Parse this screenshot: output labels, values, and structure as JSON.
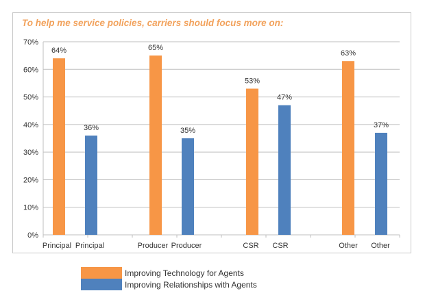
{
  "chart_data": {
    "type": "bar",
    "title": "To help me service policies, carriers should focus more on:",
    "xlabel": "",
    "ylabel": "",
    "ylim": [
      0,
      70
    ],
    "yticks": [
      0,
      10,
      20,
      30,
      40,
      50,
      60,
      70
    ],
    "ytick_labels": [
      "0%",
      "10%",
      "20%",
      "30%",
      "40%",
      "50%",
      "60%",
      "70%"
    ],
    "grid": true,
    "legend_position": "bottom-left",
    "categories": [
      "Principal",
      "Principal",
      "",
      "Producer",
      "Producer",
      "",
      "CSR",
      "CSR",
      "",
      "Other",
      "Other"
    ],
    "bars": [
      {
        "category": "Principal",
        "series": "Improving Technology for Agents",
        "value": 64,
        "label": "64%"
      },
      {
        "category": "Principal",
        "series": "Improving Relationships with Agents",
        "value": 36,
        "label": "36%"
      },
      {
        "category": "Producer",
        "series": "Improving Technology for Agents",
        "value": 65,
        "label": "65%"
      },
      {
        "category": "Producer",
        "series": "Improving Relationships with Agents",
        "value": 35,
        "label": "35%"
      },
      {
        "category": "CSR",
        "series": "Improving Technology for Agents",
        "value": 53,
        "label": "53%"
      },
      {
        "category": "CSR",
        "series": "Improving Relationships with Agents",
        "value": 47,
        "label": "47%"
      },
      {
        "category": "Other",
        "series": "Improving Technology for Agents",
        "value": 63,
        "label": "63%"
      },
      {
        "category": "Other",
        "series": "Improving Relationships with Agents",
        "value": 37,
        "label": "37%"
      }
    ],
    "series": [
      {
        "name": "Improving Technology for Agents",
        "color": "#f79646",
        "values": [
          64,
          65,
          53,
          63
        ]
      },
      {
        "name": "Improving Relationships with Agents",
        "color": "#4f81bd",
        "values": [
          36,
          35,
          47,
          37
        ]
      }
    ],
    "groups": [
      "Principal",
      "Producer",
      "CSR",
      "Other"
    ]
  },
  "colors": {
    "title": "#f2a25c",
    "technology": "#f79646",
    "relationships": "#4f81bd",
    "grid": "#bfbfbf",
    "text": "#333333"
  }
}
